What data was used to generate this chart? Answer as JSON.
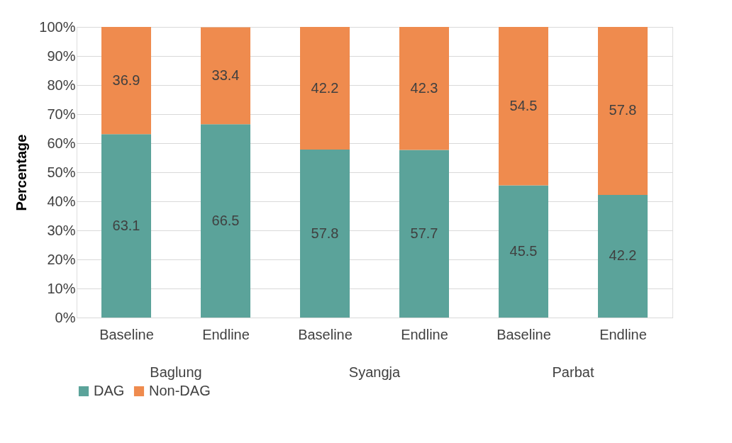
{
  "chart_data": {
    "type": "bar",
    "stacked": true,
    "ylabel": "Percentage",
    "categories": [
      "Baseline",
      "Endline",
      "Baseline",
      "Endline",
      "Baseline",
      "Endline"
    ],
    "series": [
      {
        "name": "DAG",
        "color": "#5ba39a",
        "values": [
          63.1,
          66.5,
          57.8,
          57.7,
          45.5,
          42.2
        ]
      },
      {
        "name": "Non-DAG",
        "color": "#ef8b4e",
        "values": [
          36.9,
          33.4,
          42.2,
          42.3,
          54.5,
          57.8
        ]
      }
    ],
    "ylim": [
      0,
      100
    ],
    "yticks": [
      {
        "value": 0,
        "label": "0%"
      },
      {
        "value": 10,
        "label": "10%"
      },
      {
        "value": 20,
        "label": "20%"
      },
      {
        "value": 30,
        "label": "30%"
      },
      {
        "value": 40,
        "label": "40%"
      },
      {
        "value": 50,
        "label": "50%"
      },
      {
        "value": 60,
        "label": "60%"
      },
      {
        "value": 70,
        "label": "70%"
      },
      {
        "value": 80,
        "label": "80%"
      },
      {
        "value": 90,
        "label": "90%"
      },
      {
        "value": 100,
        "label": "100%"
      }
    ],
    "annotations": [
      "Baglung",
      "Syangja",
      "Parbat"
    ],
    "data_labels": true,
    "grid": "y",
    "legend": "bottom"
  }
}
